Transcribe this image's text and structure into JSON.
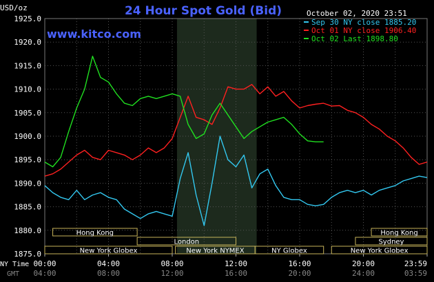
{
  "chart_data": {
    "type": "line",
    "title": "24 Hour Spot Gold (Bid)",
    "ylabel": "USD/oz",
    "timestamp": "October 02, 2020 23:51",
    "watermark": "www.kitco.com",
    "ylim": [
      1875.0,
      1925.0
    ],
    "yticks": [
      "1925.0",
      "1920.0",
      "1915.0",
      "1910.0",
      "1905.0",
      "1900.0",
      "1895.0",
      "1890.0",
      "1885.0",
      "1880.0",
      "1875.0"
    ],
    "xticks_ny": [
      "00:00",
      "04:00",
      "08:00",
      "12:00",
      "16:00",
      "20:00",
      "23:59"
    ],
    "xticks_gmt": [
      "04:00",
      "08:00",
      "12:00",
      "16:00",
      "20:00",
      "24:00",
      "03:59"
    ],
    "xaxis_labels": {
      "ny": "NY Time",
      "gmt": "GMT"
    },
    "legend": [
      {
        "text": "Sep 30 NY close 1885.20",
        "color": "#33c8f0"
      },
      {
        "text": "Oct 01 NY close 1906.40",
        "color": "#ff2020"
      },
      {
        "text": "Oct 02 Last 1898.80",
        "color": "#20e020"
      }
    ],
    "series": [
      {
        "name": "Sep 30",
        "color": "#33c8f0",
        "x": [
          0.0,
          0.5,
          1.0,
          1.5,
          2.0,
          2.5,
          3.0,
          3.5,
          4.0,
          4.5,
          5.0,
          5.5,
          6.0,
          6.5,
          7.0,
          7.5,
          8.0,
          8.5,
          9.0,
          9.5,
          10.0,
          10.5,
          11.0,
          11.5,
          12.0,
          12.5,
          13.0,
          13.5,
          14.0,
          14.5,
          15.0,
          15.5,
          16.0,
          16.5,
          17.0,
          17.5,
          18.0,
          18.5,
          19.0,
          19.5,
          20.0,
          20.5,
          21.0,
          21.5,
          22.0,
          22.5,
          23.0,
          23.5,
          24.0
        ],
        "y": [
          1889.5,
          1888.0,
          1887.0,
          1886.5,
          1888.5,
          1886.5,
          1887.5,
          1888.0,
          1887.0,
          1886.5,
          1884.5,
          1883.5,
          1882.5,
          1883.5,
          1884.0,
          1883.5,
          1883.0,
          1891.0,
          1896.5,
          1887.5,
          1881.0,
          1890.0,
          1900.0,
          1895.0,
          1893.5,
          1896.0,
          1889.0,
          1892.0,
          1893.0,
          1889.5,
          1887.0,
          1886.5,
          1886.5,
          1885.5,
          1885.2,
          1885.5,
          1887.0,
          1888.0,
          1888.5,
          1888.0,
          1888.5,
          1887.5,
          1888.5,
          1889.0,
          1889.5,
          1890.5,
          1891.0,
          1891.5,
          1891.2
        ]
      },
      {
        "name": "Oct 01",
        "color": "#ff2020",
        "x": [
          0.0,
          0.5,
          1.0,
          1.5,
          2.0,
          2.5,
          3.0,
          3.5,
          4.0,
          4.5,
          5.0,
          5.5,
          6.0,
          6.5,
          7.0,
          7.5,
          8.0,
          8.5,
          9.0,
          9.5,
          10.0,
          10.5,
          11.0,
          11.5,
          12.0,
          12.5,
          13.0,
          13.5,
          14.0,
          14.5,
          15.0,
          15.5,
          16.0,
          16.5,
          17.0,
          17.5,
          18.0,
          18.5,
          19.0,
          19.5,
          20.0,
          20.5,
          21.0,
          21.5,
          22.0,
          22.5,
          23.0,
          23.5,
          24.0
        ],
        "y": [
          1891.5,
          1892.0,
          1893.0,
          1894.5,
          1896.0,
          1897.0,
          1895.5,
          1895.0,
          1897.0,
          1896.5,
          1896.0,
          1895.0,
          1896.0,
          1897.5,
          1896.5,
          1897.5,
          1899.5,
          1904.0,
          1908.5,
          1904.0,
          1903.5,
          1902.5,
          1906.0,
          1910.5,
          1910.0,
          1910.0,
          1911.0,
          1909.0,
          1910.5,
          1908.5,
          1909.5,
          1907.5,
          1906.0,
          1906.5,
          1906.8,
          1907.0,
          1906.4,
          1906.5,
          1905.5,
          1905.0,
          1904.0,
          1902.5,
          1901.5,
          1900.0,
          1899.0,
          1897.5,
          1895.5,
          1894.0,
          1894.5
        ]
      },
      {
        "name": "Oct 02",
        "color": "#20e020",
        "x": [
          0.0,
          0.5,
          1.0,
          1.5,
          2.0,
          2.5,
          3.0,
          3.5,
          4.0,
          4.5,
          5.0,
          5.5,
          6.0,
          6.5,
          7.0,
          7.5,
          8.0,
          8.5,
          9.0,
          9.5,
          10.0,
          10.5,
          11.0,
          11.5,
          12.0,
          12.5,
          13.0,
          13.5,
          14.0,
          14.5,
          15.0,
          15.5,
          16.0,
          16.5,
          17.0,
          17.5
        ],
        "y": [
          1894.5,
          1893.5,
          1895.5,
          1901.0,
          1906.0,
          1910.0,
          1917.0,
          1912.5,
          1911.5,
          1909.0,
          1907.0,
          1906.5,
          1908.0,
          1908.5,
          1908.0,
          1908.5,
          1909.0,
          1908.5,
          1902.5,
          1899.5,
          1900.5,
          1904.5,
          1907.0,
          1904.5,
          1902.0,
          1899.5,
          1901.0,
          1902.0,
          1903.0,
          1903.5,
          1904.0,
          1902.5,
          1900.5,
          1899.0,
          1898.8,
          1898.8
        ]
      }
    ],
    "sessions": [
      {
        "name": "Hong Kong",
        "row": 0,
        "from": 0.5,
        "to": 5.8
      },
      {
        "name": "London",
        "row": 1,
        "from": 5.8,
        "to": 12.0
      },
      {
        "name": "New York Globex",
        "row": 2,
        "from": 0.0,
        "to": 8.0
      },
      {
        "name": "New York NYMEX",
        "row": 2,
        "from": 8.2,
        "to": 13.2
      },
      {
        "name": "NY Globex",
        "row": 2,
        "from": 13.2,
        "to": 17.5
      },
      {
        "name": "Hong Kong",
        "row": 0,
        "from": 20.5,
        "to": 24.0
      },
      {
        "name": "Sydney",
        "row": 1,
        "from": 19.5,
        "to": 24.0
      },
      {
        "name": "New York Globex",
        "row": 2,
        "from": 18.0,
        "to": 24.0
      }
    ],
    "shaded_region": {
      "from": 8.3,
      "to": 13.3
    },
    "grid": true
  }
}
